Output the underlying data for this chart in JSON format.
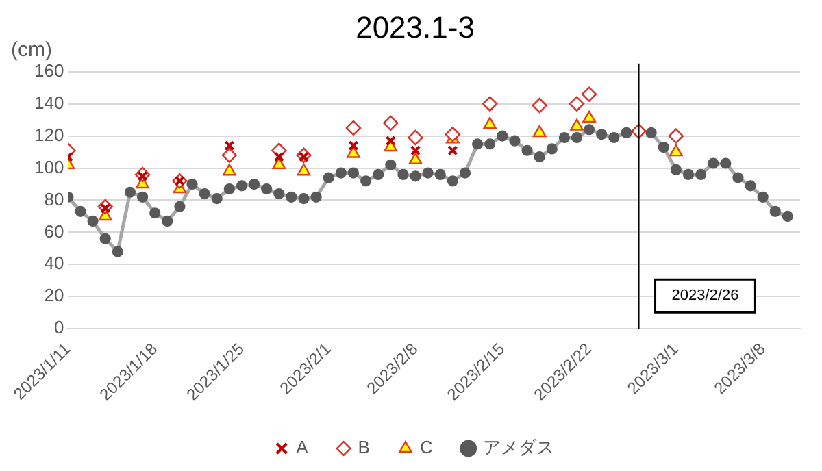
{
  "chart_data": {
    "type": "scatter",
    "title": "2023.1-3",
    "ylabel": "(cm)",
    "xlim": [
      "2023-01-11",
      "2023-03-11"
    ],
    "xticks": [
      {
        "value": "2023-01-11",
        "label": "2023/1/11"
      },
      {
        "value": "2023-01-18",
        "label": "2023/1/18"
      },
      {
        "value": "2023-01-25",
        "label": "2023/1/25"
      },
      {
        "value": "2023-02-01",
        "label": "2023/2/1"
      },
      {
        "value": "2023-02-08",
        "label": "2023/2/8"
      },
      {
        "value": "2023-02-15",
        "label": "2023/2/15"
      },
      {
        "value": "2023-02-22",
        "label": "2023/2/22"
      },
      {
        "value": "2023-03-01",
        "label": "2023/3/1"
      },
      {
        "value": "2023-03-08",
        "label": "2023/3/8"
      }
    ],
    "ylim": [
      0,
      160
    ],
    "yticks": [
      0,
      20,
      40,
      60,
      80,
      100,
      120,
      140,
      160
    ],
    "grid": "y",
    "legend": "bottom",
    "ref_lines": [
      {
        "axis": "x",
        "value": "2023-02-26",
        "label": "2023/2/26",
        "color": "#000000"
      }
    ],
    "series": [
      {
        "name": "A",
        "type": "scatter",
        "marker": "cross",
        "color": "#c00000",
        "x": [
          "2023-01-11",
          "2023-01-14",
          "2023-01-17",
          "2023-01-20",
          "2023-01-24",
          "2023-01-28",
          "2023-01-30",
          "2023-02-03",
          "2023-02-06",
          "2023-02-08",
          "2023-02-11"
        ],
        "values": [
          107,
          75,
          95,
          92,
          114,
          107,
          107,
          114,
          117,
          111,
          111
        ]
      },
      {
        "name": "B",
        "type": "scatter",
        "marker": "diamond",
        "color": "#d9302a",
        "x": [
          "2023-01-11",
          "2023-01-14",
          "2023-01-17",
          "2023-01-20",
          "2023-01-24",
          "2023-01-28",
          "2023-01-30",
          "2023-02-03",
          "2023-02-06",
          "2023-02-08",
          "2023-02-11",
          "2023-02-14",
          "2023-02-18",
          "2023-02-21",
          "2023-02-22",
          "2023-02-26",
          "2023-03-01"
        ],
        "values": [
          111,
          76,
          96,
          92,
          108,
          111,
          108,
          125,
          128,
          119,
          121,
          140,
          139,
          140,
          146,
          123,
          120
        ]
      },
      {
        "name": "C",
        "type": "scatter",
        "marker": "triangle",
        "color": "#ffff00",
        "x": [
          "2023-01-11",
          "2023-01-14",
          "2023-01-17",
          "2023-01-20",
          "2023-01-24",
          "2023-01-28",
          "2023-01-30",
          "2023-02-03",
          "2023-02-06",
          "2023-02-08",
          "2023-02-11",
          "2023-02-14",
          "2023-02-18",
          "2023-02-21",
          "2023-02-22",
          "2023-03-01"
        ],
        "values": [
          102,
          70,
          90,
          87,
          98,
          102,
          98,
          109,
          113,
          105,
          118,
          127,
          122,
          126,
          131,
          110
        ]
      },
      {
        "name": "アメダス",
        "type": "line",
        "marker": "circle",
        "color": "#a6a6a6",
        "x": [
          "2023-01-11",
          "2023-01-12",
          "2023-01-13",
          "2023-01-14",
          "2023-01-15",
          "2023-01-16",
          "2023-01-17",
          "2023-01-18",
          "2023-01-19",
          "2023-01-20",
          "2023-01-21",
          "2023-01-22",
          "2023-01-23",
          "2023-01-24",
          "2023-01-25",
          "2023-01-26",
          "2023-01-27",
          "2023-01-28",
          "2023-01-29",
          "2023-01-30",
          "2023-01-31",
          "2023-02-01",
          "2023-02-02",
          "2023-02-03",
          "2023-02-04",
          "2023-02-05",
          "2023-02-06",
          "2023-02-07",
          "2023-02-08",
          "2023-02-09",
          "2023-02-10",
          "2023-02-11",
          "2023-02-12",
          "2023-02-13",
          "2023-02-14",
          "2023-02-15",
          "2023-02-16",
          "2023-02-17",
          "2023-02-18",
          "2023-02-19",
          "2023-02-20",
          "2023-02-21",
          "2023-02-22",
          "2023-02-23",
          "2023-02-24",
          "2023-02-25",
          "2023-02-26",
          "2023-02-27",
          "2023-02-28",
          "2023-03-01",
          "2023-03-02",
          "2023-03-03",
          "2023-03-04",
          "2023-03-05",
          "2023-03-06",
          "2023-03-07",
          "2023-03-08",
          "2023-03-09",
          "2023-03-10"
        ],
        "values": [
          82,
          73,
          67,
          56,
          48,
          85,
          82,
          72,
          67,
          76,
          90,
          84,
          81,
          87,
          89,
          90,
          87,
          84,
          82,
          81,
          82,
          94,
          97,
          97,
          92,
          96,
          102,
          96,
          95,
          97,
          96,
          92,
          97,
          115,
          115,
          120,
          117,
          111,
          107,
          112,
          119,
          119,
          124,
          121,
          119,
          122,
          123,
          122,
          113,
          99,
          96,
          96,
          103,
          103,
          94,
          89,
          82,
          73,
          70
        ]
      }
    ]
  }
}
